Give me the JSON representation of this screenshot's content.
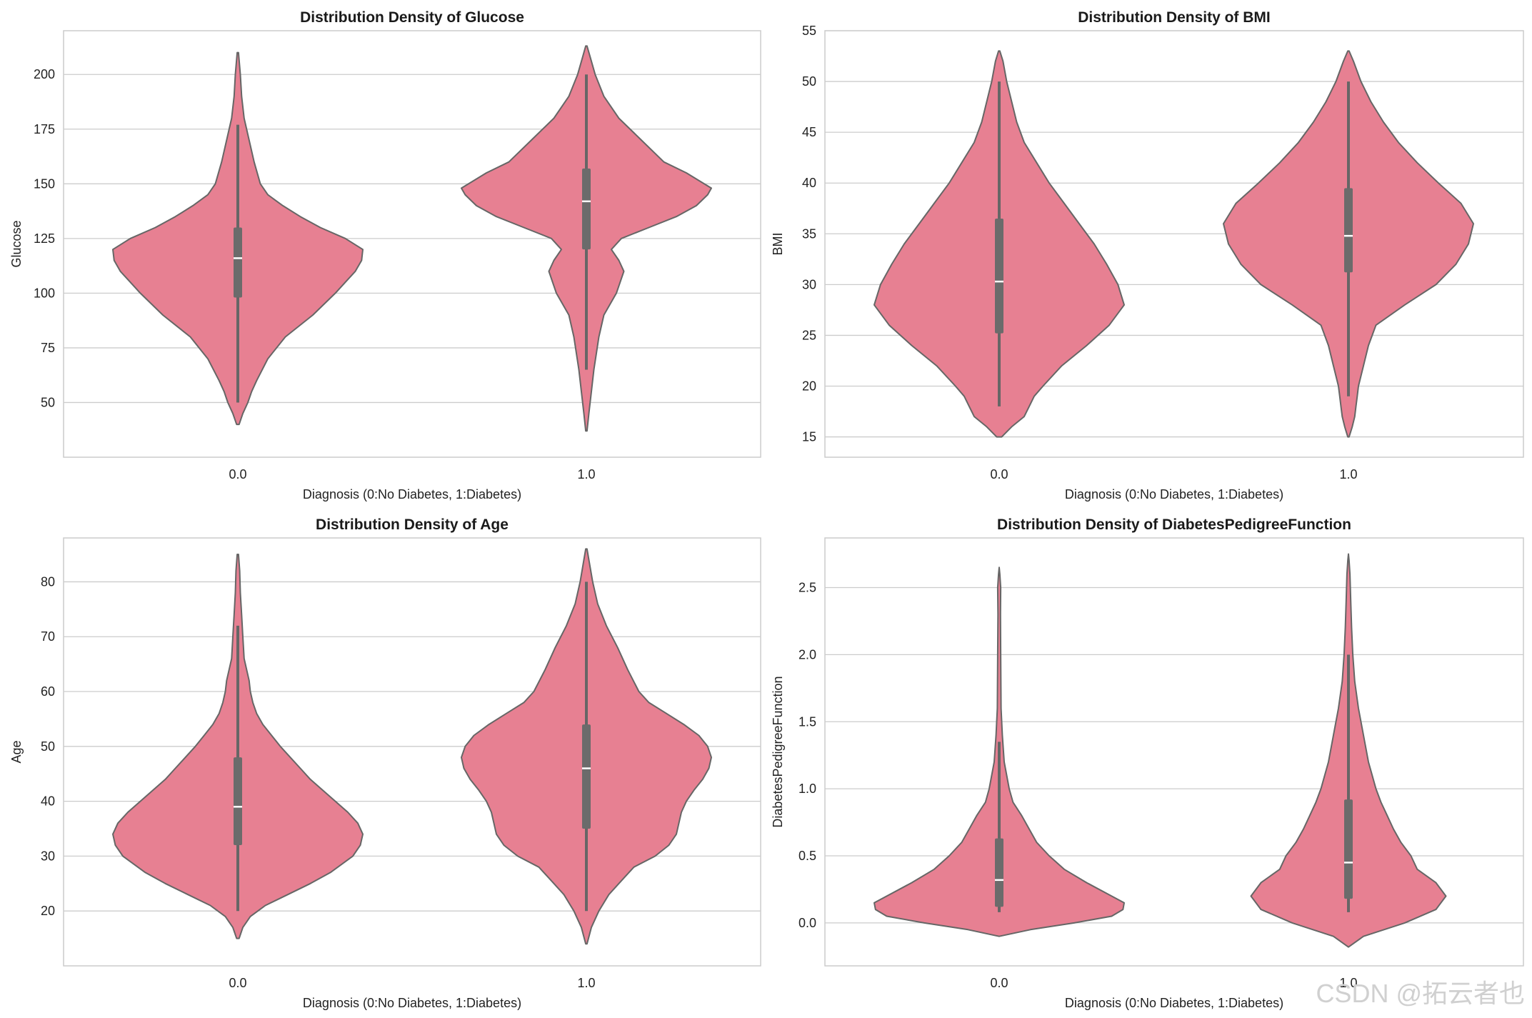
{
  "colors": {
    "violin_fill": "#e78092",
    "violin_edge": "#666666",
    "grid": "#cccccc",
    "box": "#6b6b6b",
    "median": "#ffffff"
  },
  "watermark": "CSDN @拓云者也",
  "chart_data": [
    {
      "type": "violin",
      "title": "Distribution Density of Glucose",
      "xlabel": "Diagnosis (0:No Diabetes, 1:Diabetes)",
      "ylabel": "Glucose",
      "categories": [
        "0.0",
        "1.0"
      ],
      "ylim": [
        25,
        220
      ],
      "yticks": [
        50,
        75,
        100,
        125,
        150,
        175,
        200
      ],
      "ytick_labels": [
        "50",
        "75",
        "100",
        "125",
        "150",
        "175",
        "200"
      ],
      "grid": true,
      "series": [
        {
          "name": "0.0",
          "q1": 98,
          "median": 116,
          "q3": 130,
          "whisker_low": 50,
          "whisker_high": 177,
          "profile": [
            [
              40,
              0.01
            ],
            [
              45,
              0.04
            ],
            [
              50,
              0.08
            ],
            [
              55,
              0.11
            ],
            [
              60,
              0.15
            ],
            [
              70,
              0.24
            ],
            [
              80,
              0.38
            ],
            [
              90,
              0.6
            ],
            [
              100,
              0.78
            ],
            [
              105,
              0.86
            ],
            [
              110,
              0.94
            ],
            [
              115,
              0.99
            ],
            [
              120,
              1.0
            ],
            [
              125,
              0.86
            ],
            [
              130,
              0.66
            ],
            [
              135,
              0.5
            ],
            [
              140,
              0.36
            ],
            [
              145,
              0.24
            ],
            [
              150,
              0.18
            ],
            [
              160,
              0.13
            ],
            [
              170,
              0.09
            ],
            [
              180,
              0.05
            ],
            [
              190,
              0.03
            ],
            [
              200,
              0.02
            ],
            [
              210,
              0.005
            ]
          ]
        },
        {
          "name": "1.0",
          "q1": 120,
          "median": 142,
          "q3": 157,
          "whisker_low": 65,
          "whisker_high": 200,
          "profile": [
            [
              37,
              0.005
            ],
            [
              45,
              0.02
            ],
            [
              55,
              0.04
            ],
            [
              65,
              0.06
            ],
            [
              80,
              0.1
            ],
            [
              90,
              0.14
            ],
            [
              100,
              0.24
            ],
            [
              110,
              0.3
            ],
            [
              115,
              0.26
            ],
            [
              120,
              0.2
            ],
            [
              125,
              0.28
            ],
            [
              130,
              0.5
            ],
            [
              135,
              0.72
            ],
            [
              140,
              0.88
            ],
            [
              145,
              0.97
            ],
            [
              148,
              1.0
            ],
            [
              155,
              0.8
            ],
            [
              160,
              0.62
            ],
            [
              170,
              0.44
            ],
            [
              180,
              0.26
            ],
            [
              190,
              0.14
            ],
            [
              200,
              0.07
            ],
            [
              208,
              0.03
            ],
            [
              213,
              0.005
            ]
          ]
        }
      ]
    },
    {
      "type": "violin",
      "title": "Distribution Density of BMI",
      "xlabel": "Diagnosis (0:No Diabetes, 1:Diabetes)",
      "ylabel": "BMI",
      "categories": [
        "0.0",
        "1.0"
      ],
      "ylim": [
        13,
        55
      ],
      "yticks": [
        15,
        20,
        25,
        30,
        35,
        40,
        45,
        50,
        55
      ],
      "ytick_labels": [
        "15",
        "20",
        "25",
        "30",
        "35",
        "40",
        "45",
        "50",
        "55"
      ],
      "grid": true,
      "series": [
        {
          "name": "0.0",
          "q1": 25.2,
          "median": 30.3,
          "q3": 36.5,
          "whisker_low": 18,
          "whisker_high": 50,
          "profile": [
            [
              15,
              0.02
            ],
            [
              16,
              0.1
            ],
            [
              17,
              0.2
            ],
            [
              18,
              0.24
            ],
            [
              19,
              0.28
            ],
            [
              20,
              0.35
            ],
            [
              22,
              0.5
            ],
            [
              24,
              0.7
            ],
            [
              26,
              0.88
            ],
            [
              28,
              1.0
            ],
            [
              30,
              0.95
            ],
            [
              32,
              0.86
            ],
            [
              34,
              0.76
            ],
            [
              36,
              0.64
            ],
            [
              38,
              0.52
            ],
            [
              40,
              0.4
            ],
            [
              42,
              0.3
            ],
            [
              44,
              0.2
            ],
            [
              46,
              0.14
            ],
            [
              48,
              0.1
            ],
            [
              50,
              0.06
            ],
            [
              52,
              0.03
            ],
            [
              53,
              0.005
            ]
          ]
        },
        {
          "name": "1.0",
          "q1": 31.2,
          "median": 34.8,
          "q3": 39.5,
          "whisker_low": 19,
          "whisker_high": 50,
          "profile": [
            [
              15,
              0.005
            ],
            [
              16,
              0.03
            ],
            [
              17,
              0.05
            ],
            [
              18,
              0.06
            ],
            [
              19,
              0.07
            ],
            [
              20,
              0.08
            ],
            [
              22,
              0.12
            ],
            [
              24,
              0.16
            ],
            [
              26,
              0.22
            ],
            [
              28,
              0.45
            ],
            [
              30,
              0.7
            ],
            [
              32,
              0.86
            ],
            [
              34,
              0.96
            ],
            [
              36,
              1.0
            ],
            [
              38,
              0.9
            ],
            [
              40,
              0.72
            ],
            [
              42,
              0.55
            ],
            [
              44,
              0.4
            ],
            [
              46,
              0.28
            ],
            [
              48,
              0.18
            ],
            [
              50,
              0.1
            ],
            [
              52,
              0.04
            ],
            [
              53,
              0.005
            ]
          ]
        }
      ]
    },
    {
      "type": "violin",
      "title": "Distribution Density of Age",
      "xlabel": "Diagnosis (0:No Diabetes, 1:Diabetes)",
      "ylabel": "Age",
      "categories": [
        "0.0",
        "1.0"
      ],
      "ylim": [
        10,
        88
      ],
      "yticks": [
        20,
        30,
        40,
        50,
        60,
        70,
        80
      ],
      "ytick_labels": [
        "20",
        "30",
        "40",
        "50",
        "60",
        "70",
        "80"
      ],
      "grid": true,
      "series": [
        {
          "name": "0.0",
          "q1": 32,
          "median": 39,
          "q3": 48,
          "whisker_low": 20,
          "whisker_high": 72,
          "profile": [
            [
              15,
              0.01
            ],
            [
              17,
              0.04
            ],
            [
              19,
              0.1
            ],
            [
              21,
              0.22
            ],
            [
              23,
              0.4
            ],
            [
              25,
              0.58
            ],
            [
              27,
              0.74
            ],
            [
              30,
              0.92
            ],
            [
              32,
              0.98
            ],
            [
              34,
              1.0
            ],
            [
              36,
              0.96
            ],
            [
              38,
              0.88
            ],
            [
              40,
              0.78
            ],
            [
              42,
              0.68
            ],
            [
              44,
              0.58
            ],
            [
              46,
              0.5
            ],
            [
              48,
              0.42
            ],
            [
              50,
              0.34
            ],
            [
              52,
              0.27
            ],
            [
              54,
              0.2
            ],
            [
              56,
              0.15
            ],
            [
              58,
              0.12
            ],
            [
              60,
              0.1
            ],
            [
              62,
              0.09
            ],
            [
              64,
              0.07
            ],
            [
              66,
              0.05
            ],
            [
              70,
              0.04
            ],
            [
              74,
              0.03
            ],
            [
              78,
              0.02
            ],
            [
              82,
              0.015
            ],
            [
              85,
              0.005
            ]
          ]
        },
        {
          "name": "1.0",
          "q1": 35,
          "median": 46,
          "q3": 54,
          "whisker_low": 20,
          "whisker_high": 80,
          "profile": [
            [
              14,
              0.005
            ],
            [
              17,
              0.04
            ],
            [
              20,
              0.1
            ],
            [
              23,
              0.18
            ],
            [
              26,
              0.3
            ],
            [
              28,
              0.38
            ],
            [
              30,
              0.55
            ],
            [
              32,
              0.66
            ],
            [
              34,
              0.72
            ],
            [
              36,
              0.74
            ],
            [
              38,
              0.76
            ],
            [
              40,
              0.8
            ],
            [
              42,
              0.86
            ],
            [
              44,
              0.93
            ],
            [
              46,
              0.98
            ],
            [
              48,
              1.0
            ],
            [
              50,
              0.97
            ],
            [
              52,
              0.9
            ],
            [
              54,
              0.78
            ],
            [
              56,
              0.64
            ],
            [
              58,
              0.5
            ],
            [
              60,
              0.42
            ],
            [
              64,
              0.33
            ],
            [
              68,
              0.25
            ],
            [
              72,
              0.16
            ],
            [
              76,
              0.09
            ],
            [
              80,
              0.05
            ],
            [
              84,
              0.02
            ],
            [
              86,
              0.005
            ]
          ]
        }
      ]
    },
    {
      "type": "violin",
      "title": "Distribution Density of DiabetesPedigreeFunction",
      "xlabel": "Diagnosis (0:No Diabetes, 1:Diabetes)",
      "ylabel": "DiabetesPedigreeFunction",
      "categories": [
        "0.0",
        "1.0"
      ],
      "ylim": [
        -0.32,
        2.87
      ],
      "yticks": [
        0.0,
        0.5,
        1.0,
        1.5,
        2.0,
        2.5
      ],
      "ytick_labels": [
        "0.0",
        "0.5",
        "1.0",
        "1.5",
        "2.0",
        "2.5"
      ],
      "grid": true,
      "series": [
        {
          "name": "0.0",
          "q1": 0.12,
          "median": 0.32,
          "q3": 0.63,
          "whisker_low": 0.08,
          "whisker_high": 1.35,
          "profile": [
            [
              -0.1,
              0.0
            ],
            [
              -0.05,
              0.25
            ],
            [
              0.0,
              0.6
            ],
            [
              0.05,
              0.9
            ],
            [
              0.1,
              0.99
            ],
            [
              0.15,
              1.0
            ],
            [
              0.2,
              0.9
            ],
            [
              0.3,
              0.7
            ],
            [
              0.4,
              0.52
            ],
            [
              0.5,
              0.4
            ],
            [
              0.6,
              0.3
            ],
            [
              0.7,
              0.24
            ],
            [
              0.8,
              0.18
            ],
            [
              0.9,
              0.11
            ],
            [
              1.0,
              0.08
            ],
            [
              1.2,
              0.04
            ],
            [
              1.4,
              0.025
            ],
            [
              1.6,
              0.015
            ],
            [
              2.0,
              0.012
            ],
            [
              2.3,
              0.01
            ],
            [
              2.5,
              0.012
            ],
            [
              2.6,
              0.005
            ],
            [
              2.65,
              0.0
            ]
          ]
        },
        {
          "name": "1.0",
          "q1": 0.18,
          "median": 0.45,
          "q3": 0.92,
          "whisker_low": 0.08,
          "whisker_high": 2.0,
          "profile": [
            [
              -0.18,
              0.0
            ],
            [
              -0.1,
              0.12
            ],
            [
              0.0,
              0.45
            ],
            [
              0.1,
              0.7
            ],
            [
              0.2,
              0.78
            ],
            [
              0.3,
              0.7
            ],
            [
              0.4,
              0.55
            ],
            [
              0.5,
              0.5
            ],
            [
              0.6,
              0.42
            ],
            [
              0.7,
              0.36
            ],
            [
              0.8,
              0.31
            ],
            [
              0.9,
              0.26
            ],
            [
              1.0,
              0.22
            ],
            [
              1.2,
              0.16
            ],
            [
              1.4,
              0.12
            ],
            [
              1.6,
              0.08
            ],
            [
              1.8,
              0.05
            ],
            [
              2.0,
              0.035
            ],
            [
              2.2,
              0.025
            ],
            [
              2.4,
              0.018
            ],
            [
              2.6,
              0.012
            ],
            [
              2.7,
              0.005
            ],
            [
              2.75,
              0.0
            ]
          ]
        }
      ]
    }
  ]
}
